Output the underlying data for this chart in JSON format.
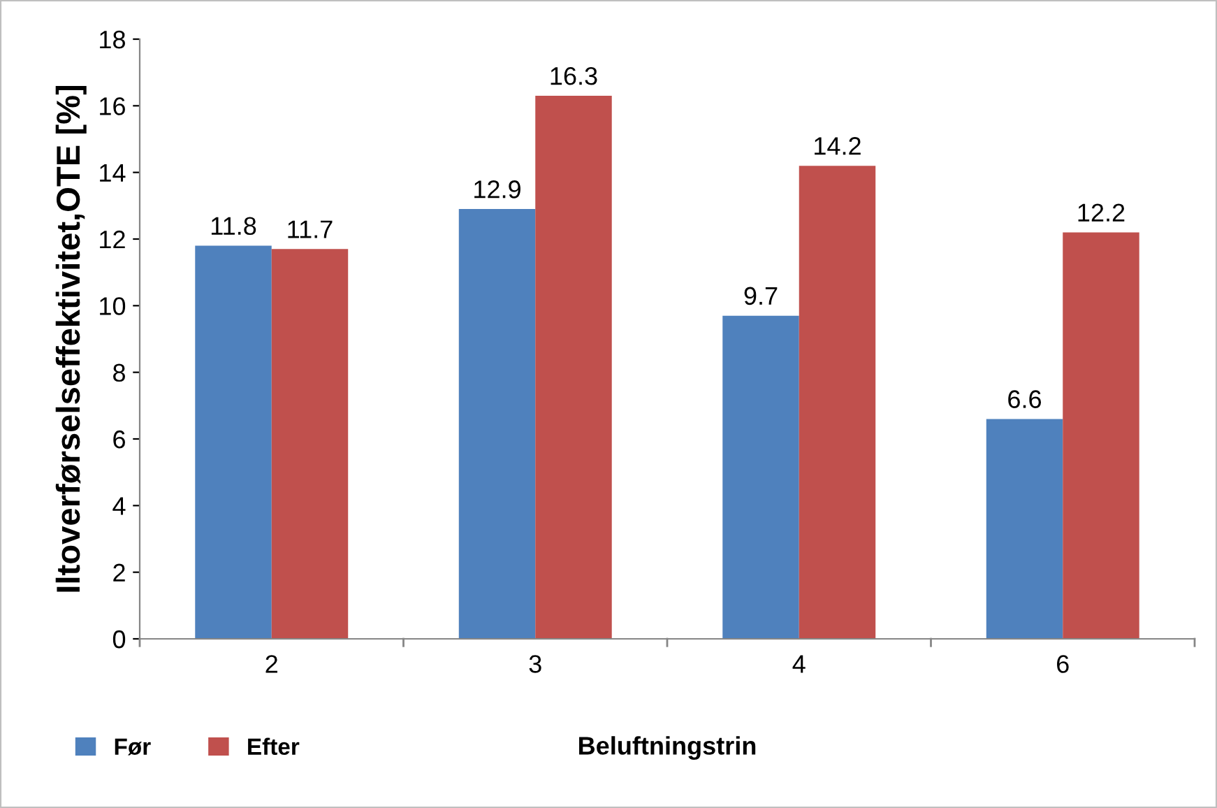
{
  "chart_data": {
    "type": "bar",
    "xlabel": "Beluftningstrin",
    "ylabel": "Iltoverførselseffektivitet,OTE [%]",
    "categories": [
      "2",
      "3",
      "4",
      "6"
    ],
    "series": [
      {
        "name": "Før",
        "color": "#4f81bd",
        "values": [
          11.8,
          12.9,
          9.7,
          6.6
        ]
      },
      {
        "name": "Efter",
        "color": "#c0504d",
        "values": [
          11.7,
          16.3,
          14.2,
          12.2
        ]
      }
    ],
    "ylim": [
      0,
      18
    ],
    "yticks": [
      0,
      2,
      4,
      6,
      8,
      10,
      12,
      14,
      16,
      18
    ],
    "grid": false,
    "legend": "bottom left",
    "data_labels": true
  }
}
